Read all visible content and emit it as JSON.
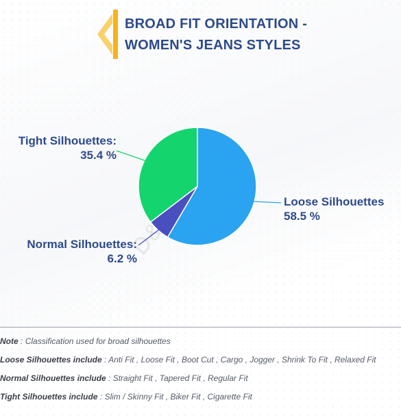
{
  "header": {
    "title": "BROAD FIT ORIENTATION -\nWOMEN'S JEANS STYLES"
  },
  "chart_data": {
    "type": "pie",
    "title": "BROAD FIT ORIENTATION - WOMEN'S JEANS STYLES",
    "categories": [
      "Loose Silhouettes",
      "Normal Silhouettes",
      "Tight Silhouettes"
    ],
    "values": [
      58.5,
      6.2,
      35.4
    ],
    "labels": [
      {
        "name": "Loose Silhouettes",
        "value_text": "58.5 %"
      },
      {
        "name": "Normal Silhouettes:",
        "value_text": "6.2 %"
      },
      {
        "name": "Tight Silhouettes:",
        "value_text": "35.4 %"
      }
    ],
    "colors": [
      "#2aa3f0",
      "#4a4fc0",
      "#14d46e"
    ],
    "start": "12 o'clock",
    "direction": "clockwise"
  },
  "watermark": "D&J Reports",
  "notes": [
    {
      "key": "Note",
      "sep": " : ",
      "text": "Classification used for broad silhouettes"
    },
    {
      "key": "Loose Silhouettes include",
      "sep": " : ",
      "text": "Anti Fit , Loose Fit , Boot Cut , Cargo , Jogger , Shrink To Fit , Relaxed Fit"
    },
    {
      "key": "Normal Silhouettes include",
      "sep": " : ",
      "text": "Straight Fit , Tapered Fit , Regular Fit"
    },
    {
      "key": "Tight Silhouettes include",
      "sep": " : ",
      "text": "Slim / Skinny Fit , Biker Fit , Cigarette Fit"
    }
  ],
  "accent_color": "#f6b21a",
  "text_color": "#2d4a8a"
}
